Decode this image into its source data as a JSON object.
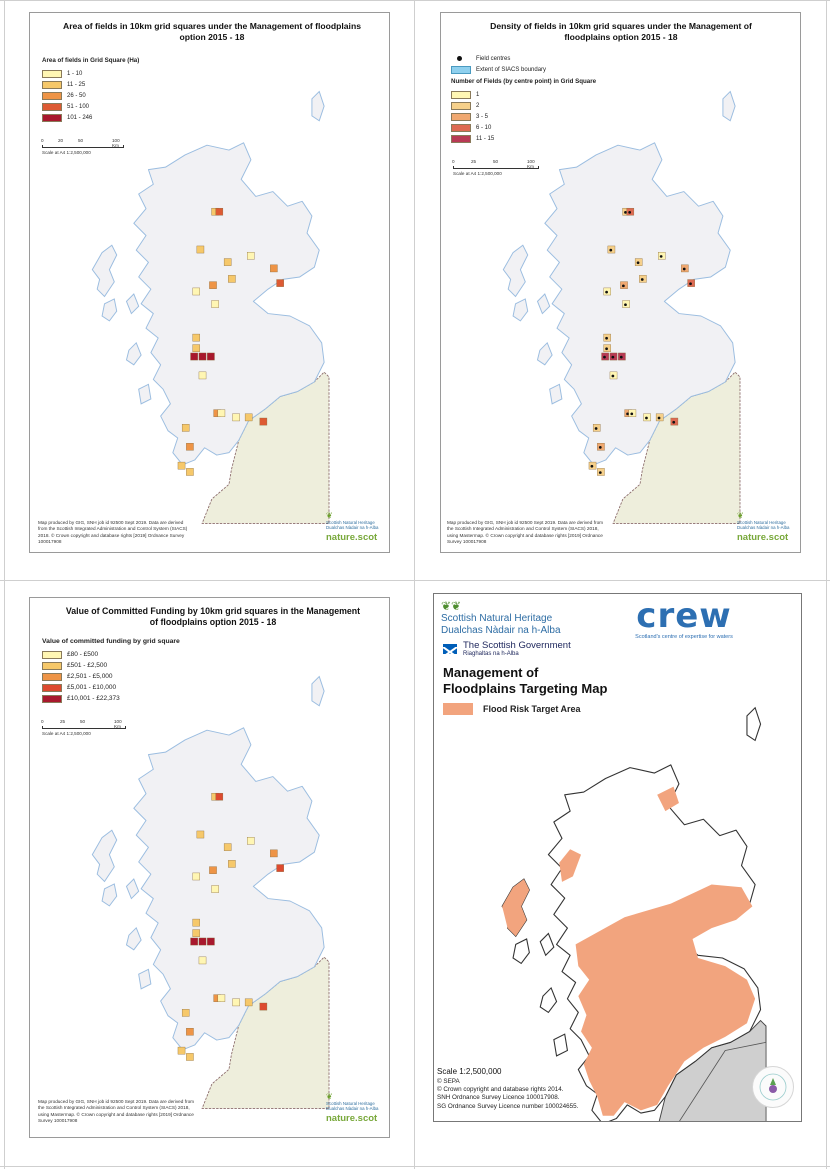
{
  "colors": {
    "land": "#f1f1f4",
    "coast": "#9bbde0",
    "england": "#eeeedc",
    "grey_land": "#cfcfcf",
    "target": "#f2a47e"
  },
  "panel1": {
    "title": "Area of fields in 10km grid squares under the Management of floodplains option 2015 - 18",
    "legend_heading": "Area of fields in Grid Square (Ha)",
    "legend": [
      {
        "label": "1 - 10",
        "color": "#fff6b3"
      },
      {
        "label": "11 - 25",
        "color": "#f6c86a"
      },
      {
        "label": "26 - 50",
        "color": "#ee9446"
      },
      {
        "label": "51 - 100",
        "color": "#dd5a33"
      },
      {
        "label": "101 - 246",
        "color": "#a8182d"
      }
    ],
    "scale_ticks": [
      "0",
      "20",
      "50",
      "100 Km"
    ],
    "scale_text": "Scale at A4 1:2,500,000",
    "credit": "Map produced by GIG, SNH job id 92500 Sept 2019. Data are derived from the Scottish Integrated Administration and Control System (SIACS) 2018. © Crown copyright and database rights [2019] Ordnance Survey 100017908",
    "logo_name": "Scottish Natural Heritage",
    "logo_gaelic": "Dualchas Nàdair na h-Alba",
    "logo_site": "nature.scot"
  },
  "panel2": {
    "title": "Density of fields in 10km grid squares under the Management of floodplains option 2015 - 18",
    "legend_top": [
      {
        "label": "Field centres",
        "kind": "dot"
      },
      {
        "label": "Extent of SIACS boundary",
        "kind": "blue"
      }
    ],
    "legend_heading": "Number of Fields (by centre point) in Grid Square",
    "legend": [
      {
        "label": "1",
        "color": "#fff6b3"
      },
      {
        "label": "2",
        "color": "#f6d08a"
      },
      {
        "label": "3 - 5",
        "color": "#f0a870"
      },
      {
        "label": "6 - 10",
        "color": "#de6a52"
      },
      {
        "label": "11 - 15",
        "color": "#b83a55"
      }
    ],
    "scale_ticks": [
      "0",
      "25",
      "50",
      "100 Km"
    ],
    "scale_text": "Scale at A4 1:2,500,000",
    "credit": "Map produced by GIG, SNH job id 92500 Sept 2019. Data are derived from the Scottish Integrated Administration and Control System (SIACS) 2018, using Mastermap. © Crown copyright and database rights [2019] Ordnance Survey 100017908",
    "logo_name": "Scottish Natural Heritage",
    "logo_gaelic": "Dualchas Nàdair na h-Alba",
    "logo_site": "nature.scot"
  },
  "panel3": {
    "title": "Value of Committed Funding by 10km grid squares in the Management of floodplains option 2015 - 18",
    "legend_heading": "Value of committed funding by grid square",
    "legend": [
      {
        "label": "£80 - £500",
        "color": "#fff6b3"
      },
      {
        "label": "£501 - £2,500",
        "color": "#f6c86a"
      },
      {
        "label": "£2,501 - £5,000",
        "color": "#ee9446"
      },
      {
        "label": "£5,001 - £10,000",
        "color": "#dd4a2f"
      },
      {
        "label": "£10,001 - £22,373",
        "color": "#a8182d"
      }
    ],
    "scale_ticks": [
      "0",
      "25",
      "50",
      "100 Km"
    ],
    "scale_text": "Scale at A4 1:2,500,000",
    "credit": "Map produced by GIG, SNH job id 92500 Sept 2019. Data are derived from the Scottish Integrated Administration and Control System (SIACS) 2018, using Mastermap. © Crown copyright and database rights [2019] Ordnance Survey 100017908",
    "logo_name": "Scottish Natural Heritage",
    "logo_gaelic": "Dualchas Nàdair na h-Alba",
    "logo_site": "nature.scot"
  },
  "panel4": {
    "snh_name": "Scottish Natural Heritage",
    "snh_gaelic": "Dualchas Nàdair na h-Alba",
    "crew_word": "crew",
    "crew_tag": "Scotland's centre of expertise for waters",
    "gov_name": "The Scottish Government",
    "gov_gaelic": "Riaghaltas na h-Alba",
    "title": "Management of Floodplains Targeting Map",
    "legend_label": "Flood Risk Target Area",
    "scale": "Scale  1:2,500,000",
    "copyright": [
      "© SEPA",
      "© Crown copyright and database rights 2014.",
      "SNH Ordnance Survey Licence 100017908.",
      "SG Ordnance Survey Licence number 100024655."
    ]
  }
}
